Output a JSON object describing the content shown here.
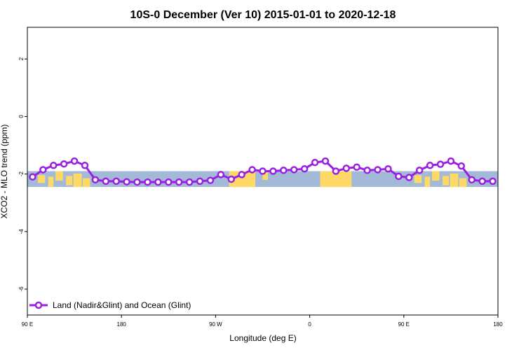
{
  "chart_data": {
    "type": "line",
    "title": "10S-0 December (Ver 10)   2015-01-01 to 2020-12-18",
    "xlabel": "Longitude (deg E)",
    "ylabel": "XCO2 - MLO trend (ppm)",
    "xlim": [
      90,
      540
    ],
    "ylim": [
      -6.9,
      3.1
    ],
    "x_ticks": [
      {
        "value": 90,
        "label": "90 E"
      },
      {
        "value": 180,
        "label": "180"
      },
      {
        "value": 270,
        "label": "90 W"
      },
      {
        "value": 360,
        "label": "0"
      },
      {
        "value": 450,
        "label": "90 E"
      },
      {
        "value": 540,
        "label": "180"
      }
    ],
    "y_ticks": [
      {
        "value": 2,
        "label": "2"
      },
      {
        "value": 0,
        "label": "0"
      },
      {
        "value": -2,
        "label": "-2"
      },
      {
        "value": -4,
        "label": "-4"
      },
      {
        "value": -6,
        "label": "-6"
      }
    ],
    "grid": false,
    "legend_position": "bottom-left",
    "background_map": {
      "lat_band": "10S-0",
      "land_color": "#FFD966",
      "ocean_color": "#A3B9D8"
    },
    "series": [
      {
        "name": "Land (Nadir&Glint) and Ocean (Glint)",
        "color": "#9B1FE0",
        "x": [
          95,
          105,
          115,
          125,
          135,
          145,
          155,
          165,
          175,
          185,
          195,
          205,
          215,
          225,
          235,
          245,
          255,
          265,
          275,
          285,
          295,
          305,
          315,
          325,
          335,
          345,
          355,
          365,
          375,
          385,
          395,
          405,
          415,
          425,
          435,
          445,
          455,
          465,
          475,
          485,
          495,
          505,
          515,
          525,
          535
        ],
        "values": [
          -2.1,
          -1.85,
          -1.7,
          -1.65,
          -1.55,
          -1.7,
          -2.2,
          -2.25,
          -2.25,
          -2.27,
          -2.28,
          -2.28,
          -2.28,
          -2.28,
          -2.28,
          -2.28,
          -2.25,
          -2.22,
          -2.02,
          -2.18,
          -2.02,
          -1.85,
          -1.9,
          -1.9,
          -1.87,
          -1.85,
          -1.82,
          -1.6,
          -1.55,
          -1.9,
          -1.8,
          -1.76,
          -1.87,
          -1.85,
          -1.82,
          -2.08,
          -2.12,
          -1.87,
          -1.7,
          -1.66,
          -1.55,
          -1.72,
          -2.2,
          -2.25,
          -2.25
        ]
      }
    ]
  }
}
